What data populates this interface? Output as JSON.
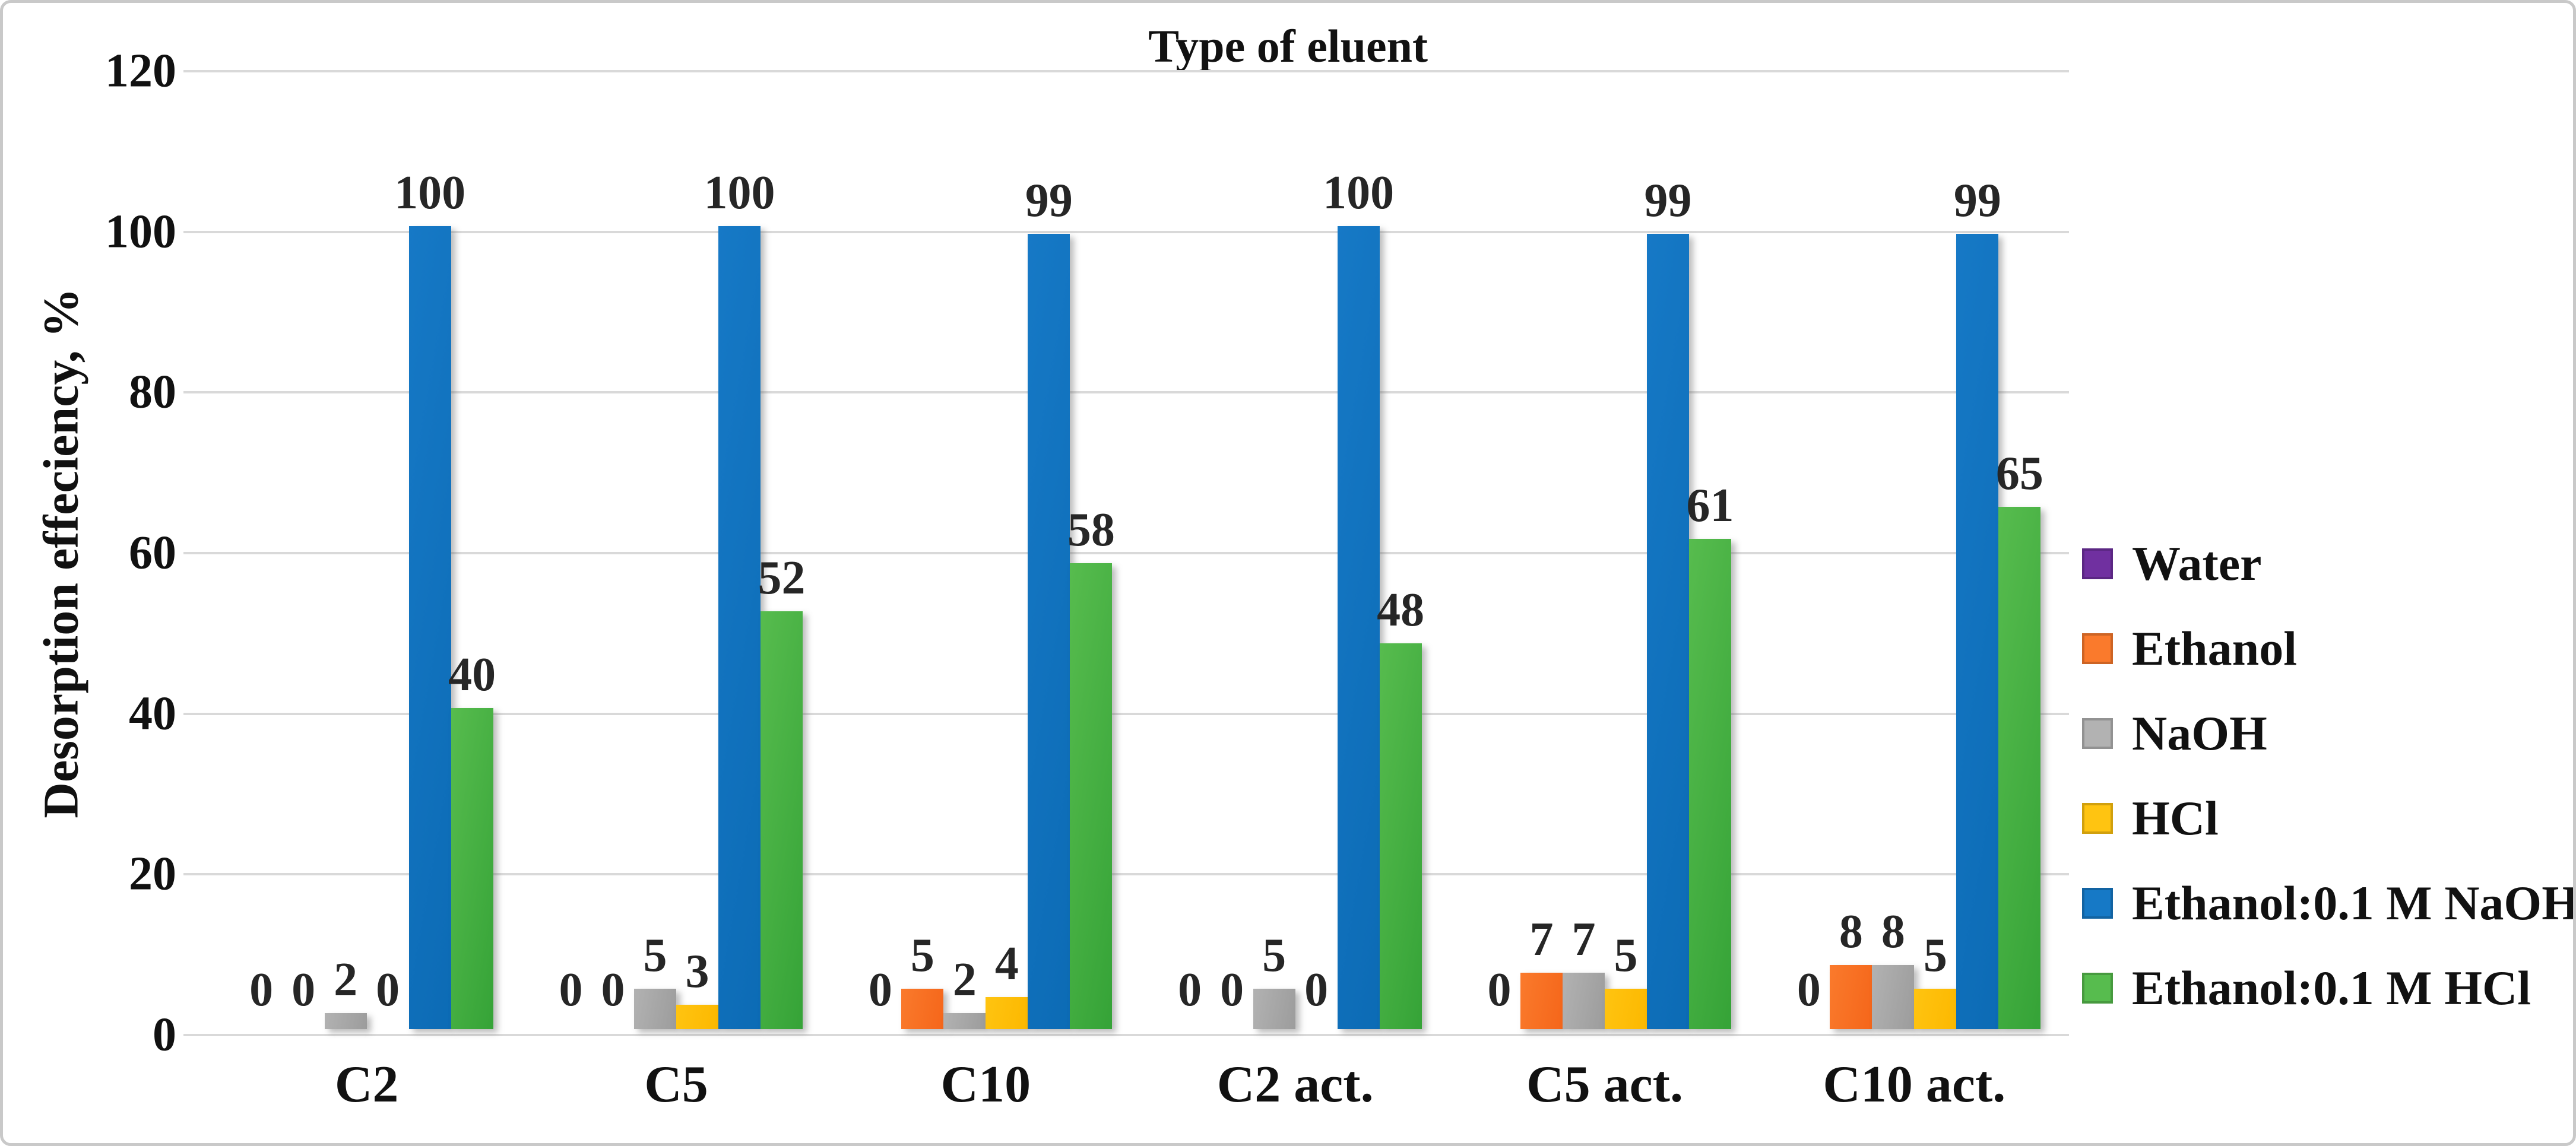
{
  "chart_data": {
    "type": "bar",
    "title": "Type of eluent",
    "xlabel": "",
    "ylabel": "Desorption effeciency, %",
    "ylim": [
      0,
      120
    ],
    "yticks": [
      0,
      20,
      40,
      60,
      80,
      100,
      120
    ],
    "grid": true,
    "legend_position": "right",
    "categories": [
      "C2",
      "C5",
      "C10",
      "C2 act.",
      "C5 act.",
      "C10 act."
    ],
    "series": [
      {
        "name": "Water",
        "color": "#7030A0",
        "color2": "#5E2787",
        "values": [
          0,
          0,
          0,
          0,
          0,
          0
        ]
      },
      {
        "name": "Ethanol",
        "color": "#FA7A2C",
        "color2": "#F5661A",
        "values": [
          0,
          0,
          5,
          0,
          7,
          8
        ]
      },
      {
        "name": "NaOH",
        "color": "#B2B2B2",
        "color2": "#9C9C9C",
        "values": [
          2,
          5,
          2,
          5,
          7,
          8
        ]
      },
      {
        "name": "HCl",
        "color": "#FFC411",
        "color2": "#FCB800",
        "values": [
          0,
          3,
          4,
          0,
          5,
          5
        ]
      },
      {
        "name": "Ethanol:0.1 M NaOH",
        "color": "#1679C6",
        "color2": "#0C6BB5",
        "values": [
          100,
          100,
          99,
          100,
          99,
          99
        ]
      },
      {
        "name": "Ethanol:0.1 M HCl",
        "color": "#57BC4E",
        "color2": "#35A337",
        "values": [
          40,
          52,
          58,
          48,
          61,
          65
        ]
      }
    ]
  }
}
